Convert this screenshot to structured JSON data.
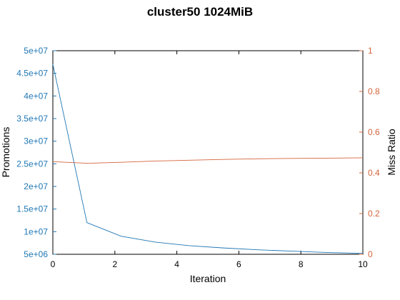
{
  "chart_data": {
    "type": "line",
    "title": "cluster50 1024MiB",
    "xlabel": "Iteration",
    "ylabel_left": "Promotions",
    "ylabel_right": "Miss Ratio",
    "xlim": [
      0,
      10
    ],
    "ylim_left": [
      5000000,
      50000000
    ],
    "ylim_right": [
      0,
      1
    ],
    "x_ticks": [
      0,
      2,
      4,
      6,
      8,
      10
    ],
    "y_left_ticks": [
      "5e+06",
      "1e+07",
      "1.5e+07",
      "2e+07",
      "2.5e+07",
      "3e+07",
      "3.5e+07",
      "4e+07",
      "4.5e+07",
      "5e+07"
    ],
    "y_right_ticks": [
      "0",
      "0.2",
      "0.4",
      "0.6",
      "0.8",
      "1"
    ],
    "grid": false,
    "colors": {
      "left_axis": "#1f77b4",
      "right_axis": "#d4643c",
      "frame": "#000000"
    },
    "series": [
      {
        "axis": "left",
        "x": [
          0,
          1.1,
          2.2,
          3.3,
          4.4,
          5.5,
          6.6,
          7.7,
          8.8,
          10
        ],
        "values": [
          47000000,
          12000000,
          9000000,
          7700000,
          6900000,
          6400000,
          6000000,
          5700000,
          5400000,
          5200000
        ],
        "color": "#1f77b4"
      },
      {
        "axis": "right",
        "x": [
          0,
          1.1,
          2.2,
          3.3,
          4.4,
          5.5,
          6.6,
          7.7,
          8.8,
          10
        ],
        "values": [
          0.455,
          0.447,
          0.452,
          0.458,
          0.462,
          0.466,
          0.469,
          0.471,
          0.472,
          0.474
        ],
        "color": "#d4643c"
      }
    ]
  }
}
